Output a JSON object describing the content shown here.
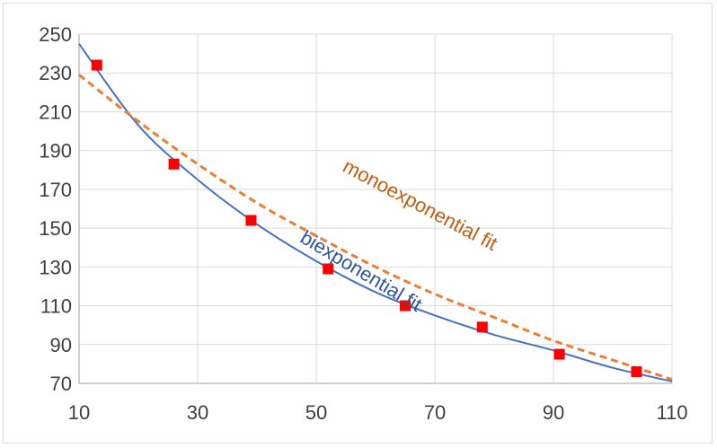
{
  "chart_data": {
    "type": "scatter",
    "x_ticks": [
      10,
      30,
      50,
      70,
      90,
      110
    ],
    "y_ticks": [
      70,
      90,
      110,
      130,
      150,
      170,
      190,
      210,
      230,
      250
    ],
    "xlim": [
      10,
      110
    ],
    "ylim": [
      70,
      250
    ],
    "grid": true,
    "series": [
      {
        "kind": "points",
        "marker": "square",
        "color": "#ff0000",
        "x": [
          13,
          26,
          39,
          52,
          65,
          78,
          91,
          104
        ],
        "y": [
          234,
          183,
          154,
          129,
          110,
          99,
          85,
          76
        ]
      },
      {
        "kind": "line",
        "style": "solid",
        "color": "#4472c4",
        "x": [
          10,
          20,
          30,
          40,
          50,
          60,
          70,
          80,
          90,
          100,
          110
        ],
        "y": [
          245,
          203,
          175,
          152,
          133,
          117,
          105,
          95,
          87,
          78,
          71
        ]
      },
      {
        "kind": "line",
        "style": "dashed",
        "color": "#ed7d31",
        "x": [
          10,
          20,
          30,
          40,
          50,
          60,
          70,
          80,
          90,
          100,
          110
        ],
        "y": [
          229,
          205,
          183,
          163,
          146,
          130,
          116,
          104,
          92,
          82,
          72
        ]
      }
    ],
    "annotations": [
      {
        "text": "monoexponential fit",
        "color": "#c55a11",
        "x": 67,
        "y": 159,
        "angle": 28
      },
      {
        "text": "biexponential fit",
        "color": "#2f5597",
        "x": 57,
        "y": 125,
        "angle": 31
      }
    ]
  }
}
